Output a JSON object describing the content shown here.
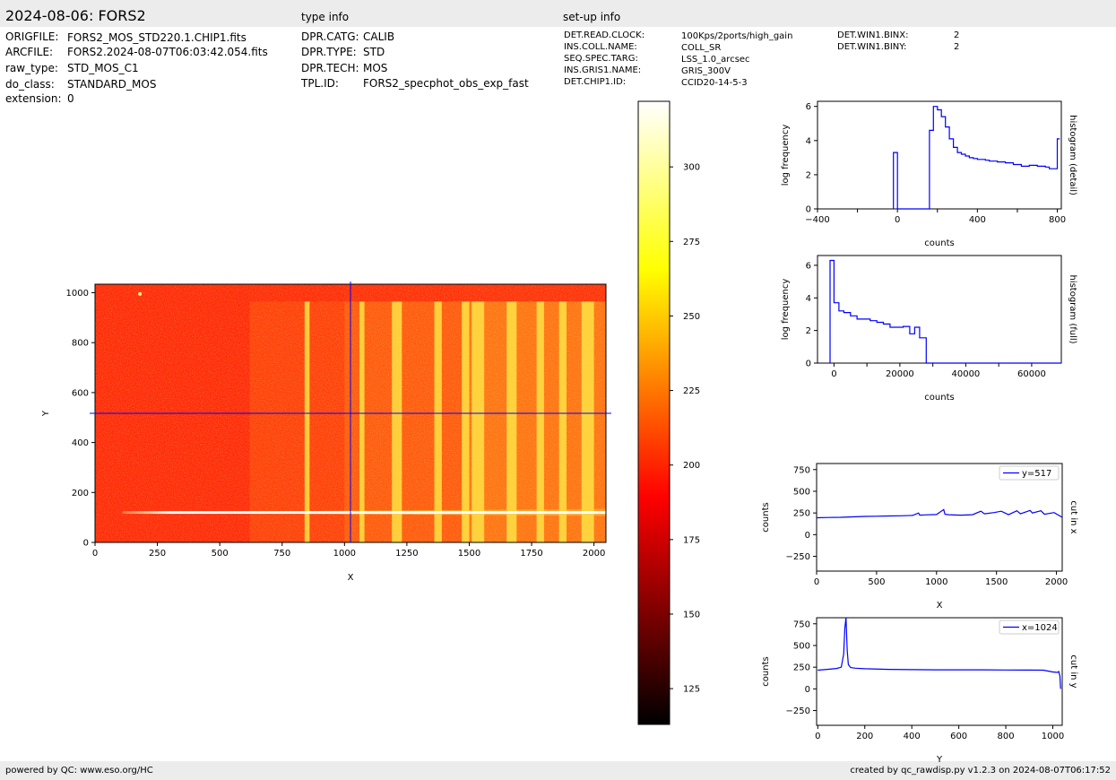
{
  "header": {
    "title": "2024-08-06: FORS2",
    "type_info_title": "type info",
    "setup_info_title": "set-up info"
  },
  "file_info": [
    {
      "key": "ORIGFILE:",
      "value": "FORS2_MOS_STD220.1.CHIP1.fits"
    },
    {
      "key": "ARCFILE:",
      "value": "FORS2.2024-08-07T06:03:42.054.fits"
    },
    {
      "key": "raw_type:",
      "value": "STD_MOS_C1"
    },
    {
      "key": "do_class:",
      "value": "STANDARD_MOS"
    },
    {
      "key": "extension:",
      "value": "0"
    }
  ],
  "type_info": [
    {
      "key": "DPR.CATG:",
      "value": "CALIB"
    },
    {
      "key": "DPR.TYPE:",
      "value": "STD"
    },
    {
      "key": "DPR.TECH:",
      "value": "MOS"
    },
    {
      "key": "TPL.ID:",
      "value": "FORS2_specphot_obs_exp_fast"
    }
  ],
  "setup_info": [
    {
      "key": "DET.READ.CLOCK:",
      "value": "100Kps/2ports/high_gain"
    },
    {
      "key": "INS.COLL.NAME:",
      "value": "COLL_SR"
    },
    {
      "key": "SEQ.SPEC.TARG:",
      "value": "LSS_1.0_arcsec"
    },
    {
      "key": "INS.GRIS1.NAME:",
      "value": "GRIS_300V"
    },
    {
      "key": "DET.CHIP1.ID:",
      "value": "CCID20-14-5-3"
    }
  ],
  "setup_info2": [
    {
      "key": "DET.WIN1.BINX:",
      "value": "2"
    },
    {
      "key": "DET.WIN1.BINY:",
      "value": "2"
    }
  ],
  "footer": {
    "left": "powered by QC: www.eso.org/HC",
    "right": "created by qc_rawdisp.py v1.2.3 on 2024-08-07T06:17:52"
  },
  "colors": {
    "trace": "#0000ff",
    "band_bg": "#ececec",
    "image_base": "#ff2a0a"
  },
  "chart_data": [
    {
      "type": "heatmap",
      "name": "raw-image",
      "xlabel": "X",
      "ylabel": "Y",
      "xlim": [
        0,
        2048
      ],
      "ylim": [
        0,
        1034
      ],
      "xticks": [
        0,
        250,
        500,
        750,
        1000,
        1250,
        1500,
        1750,
        2000
      ],
      "yticks": [
        0,
        200,
        400,
        600,
        800,
        1000
      ],
      "crosshair": {
        "x": 1024,
        "y": 517
      },
      "bright_columns": [
        [
          840,
          860
        ],
        [
          1060,
          1080
        ],
        [
          1190,
          1230
        ],
        [
          1360,
          1390
        ],
        [
          1470,
          1500
        ],
        [
          1510,
          1560
        ],
        [
          1650,
          1690
        ],
        [
          1770,
          1800
        ],
        [
          1860,
          1890
        ],
        [
          1950,
          2000
        ]
      ],
      "spectrum_row": 120
    },
    {
      "type": "colorbar",
      "name": "colorbar",
      "range": [
        113,
        322
      ],
      "ticks": [
        125,
        150,
        175,
        200,
        225,
        250,
        275,
        300
      ],
      "colormap": "hot"
    },
    {
      "type": "line",
      "name": "histogram-detail",
      "xlabel": "counts",
      "ylabel": "log frequency",
      "side_label": "histogram (detail)",
      "xlim": [
        -400,
        820
      ],
      "ylim": [
        0,
        6.3
      ],
      "xticks": [
        -400,
        0,
        400,
        800
      ],
      "yticks": [
        0,
        2,
        4,
        6
      ],
      "x": [
        -20,
        -20,
        0,
        0,
        160,
        160,
        180,
        180,
        200,
        200,
        220,
        220,
        240,
        240,
        260,
        260,
        280,
        280,
        300,
        300,
        320,
        320,
        340,
        340,
        360,
        360,
        380,
        380,
        400,
        400,
        440,
        440,
        460,
        460,
        500,
        500,
        540,
        540,
        580,
        580,
        620,
        620,
        660,
        660,
        700,
        700,
        740,
        740,
        760,
        760,
        800,
        800,
        812
      ],
      "y": [
        0,
        3.3,
        3.3,
        0,
        0,
        4.6,
        4.6,
        6.0,
        6.0,
        5.8,
        5.8,
        5.4,
        5.4,
        4.8,
        4.8,
        4.1,
        4.1,
        3.6,
        3.6,
        3.3,
        3.3,
        3.2,
        3.2,
        3.1,
        3.1,
        3.0,
        3.0,
        2.95,
        2.95,
        2.9,
        2.9,
        2.85,
        2.85,
        2.8,
        2.8,
        2.75,
        2.75,
        2.7,
        2.7,
        2.6,
        2.6,
        2.5,
        2.5,
        2.55,
        2.55,
        2.5,
        2.5,
        2.45,
        2.45,
        2.35,
        2.35,
        4.1,
        4.1
      ]
    },
    {
      "type": "line",
      "name": "histogram-full",
      "xlabel": "counts",
      "ylabel": "log frequency",
      "side_label": "histogram (full)",
      "xlim": [
        -5000,
        69000
      ],
      "ylim": [
        0,
        6.6
      ],
      "xticks": [
        0,
        20000,
        40000,
        60000
      ],
      "yticks": [
        0,
        2,
        4,
        6
      ],
      "x": [
        -1200,
        -1200,
        0,
        0,
        1500,
        1500,
        3000,
        3000,
        5000,
        5000,
        7000,
        7000,
        9000,
        9000,
        11000,
        11000,
        13000,
        13000,
        15000,
        15000,
        17000,
        17000,
        21000,
        21000,
        23000,
        23000,
        24500,
        24500,
        26000,
        26000,
        28000,
        28000,
        69000
      ],
      "y": [
        0,
        6.3,
        6.3,
        3.7,
        3.7,
        3.2,
        3.2,
        3.1,
        3.1,
        2.9,
        2.9,
        2.7,
        2.7,
        2.7,
        2.7,
        2.6,
        2.6,
        2.5,
        2.5,
        2.4,
        2.4,
        2.2,
        2.2,
        2.25,
        2.25,
        1.8,
        1.8,
        2.2,
        2.2,
        1.55,
        1.55,
        0,
        0
      ]
    },
    {
      "type": "line",
      "name": "cut-in-x",
      "xlabel": "X",
      "ylabel": "counts",
      "side_label": "cut in x",
      "legend": "y=517",
      "xlim": [
        0,
        2048
      ],
      "ylim": [
        -420,
        820
      ],
      "xticks": [
        0,
        500,
        1000,
        1500,
        2000
      ],
      "yticks": [
        -250,
        0,
        250,
        500,
        750
      ],
      "x": [
        0,
        100,
        200,
        300,
        400,
        500,
        600,
        700,
        800,
        850,
        860,
        900,
        1000,
        1060,
        1070,
        1100,
        1200,
        1300,
        1370,
        1400,
        1480,
        1540,
        1600,
        1670,
        1700,
        1780,
        1800,
        1870,
        1900,
        1980,
        2048
      ],
      "y": [
        195,
        198,
        200,
        205,
        210,
        212,
        215,
        218,
        222,
        250,
        225,
        228,
        232,
        290,
        235,
        230,
        225,
        230,
        270,
        240,
        255,
        270,
        230,
        275,
        240,
        280,
        250,
        275,
        235,
        255,
        200
      ]
    },
    {
      "type": "line",
      "name": "cut-in-y",
      "xlabel": "Y",
      "ylabel": "counts",
      "side_label": "cut in y",
      "legend": "x=1024",
      "xlim": [
        -5,
        1040
      ],
      "ylim": [
        -420,
        820
      ],
      "xticks": [
        0,
        200,
        400,
        600,
        800,
        1000
      ],
      "yticks": [
        -250,
        0,
        250,
        500,
        750
      ],
      "x": [
        0,
        40,
        80,
        100,
        110,
        115,
        120,
        125,
        130,
        140,
        160,
        200,
        300,
        400,
        500,
        600,
        700,
        800,
        900,
        960,
        1000,
        1020,
        1025,
        1030,
        1033
      ],
      "y": [
        215,
        225,
        235,
        250,
        400,
        700,
        820,
        450,
        280,
        245,
        238,
        232,
        225,
        222,
        220,
        220,
        220,
        218,
        217,
        215,
        195,
        190,
        200,
        150,
        0
      ]
    }
  ]
}
